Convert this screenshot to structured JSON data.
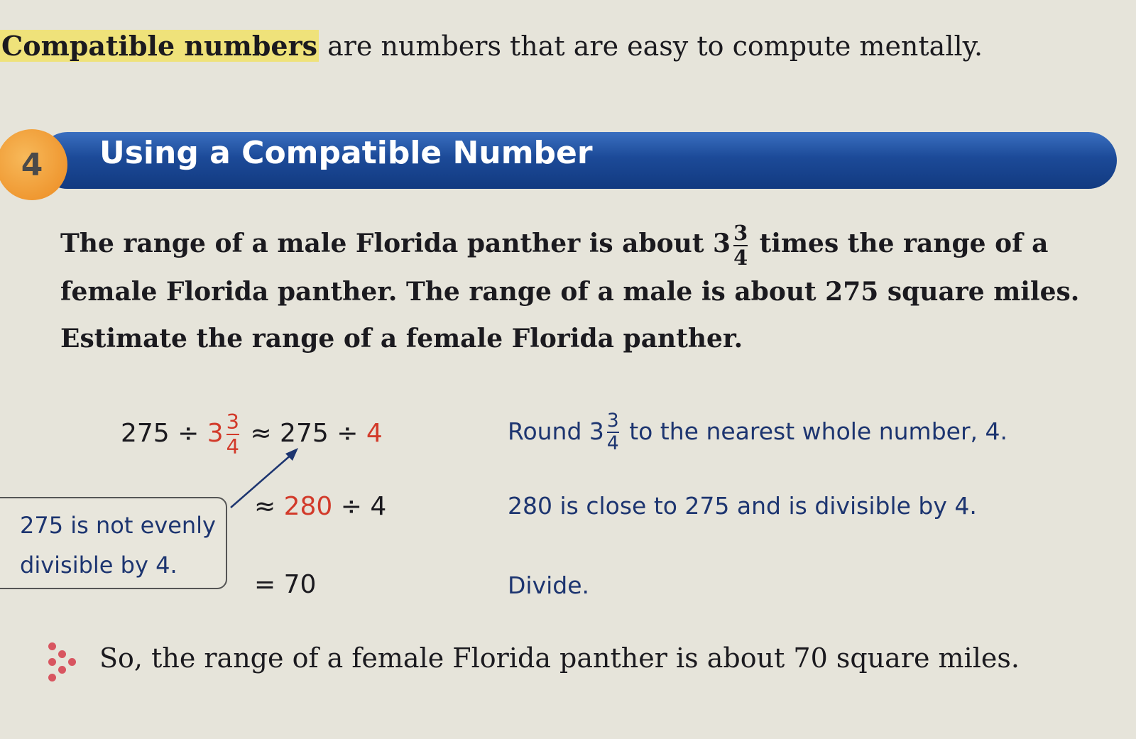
{
  "intro": {
    "term": "Compatible numbers",
    "rest": " are numbers that are easy to compute mentally."
  },
  "example": {
    "number": "4",
    "title": "Using a Compatible Number"
  },
  "problem": {
    "part1": "The range of a male Florida panther is about 3",
    "frac_num": "3",
    "frac_den": "4",
    "part2": " times the range of a female Florida panther. The range of a male is about 275 square miles. Estimate the range of a female Florida panther."
  },
  "steps": [
    {
      "lhs": "275 ÷ ",
      "whole": "3",
      "num": "3",
      "den": "4",
      "approx": " ≈ 275 ÷ ",
      "red_end": "4",
      "expl_a": "Round 3",
      "expl_num": "3",
      "expl_den": "4",
      "expl_b": " to the nearest whole number, 4."
    },
    {
      "sym": "≈ ",
      "red": "280",
      "rest": " ÷ 4",
      "expl": "280 is close to 275 and is divisible by 4."
    },
    {
      "sym": "= ",
      "rest": "70",
      "expl": "Divide."
    }
  ],
  "note": {
    "line1": "275 is not evenly",
    "line2": "divisible by 4."
  },
  "answer": "So, the range of a female Florida panther is about 70 square miles.",
  "colors": {
    "banner": "#1c4a98",
    "badge": "#ec8a20",
    "highlight": "#efe27a",
    "accent_red": "#d23a2a",
    "explanation_blue": "#1d3570"
  },
  "icons": {
    "answer_marker": "dots-arrow-icon",
    "pointer": "arrow-icon"
  }
}
